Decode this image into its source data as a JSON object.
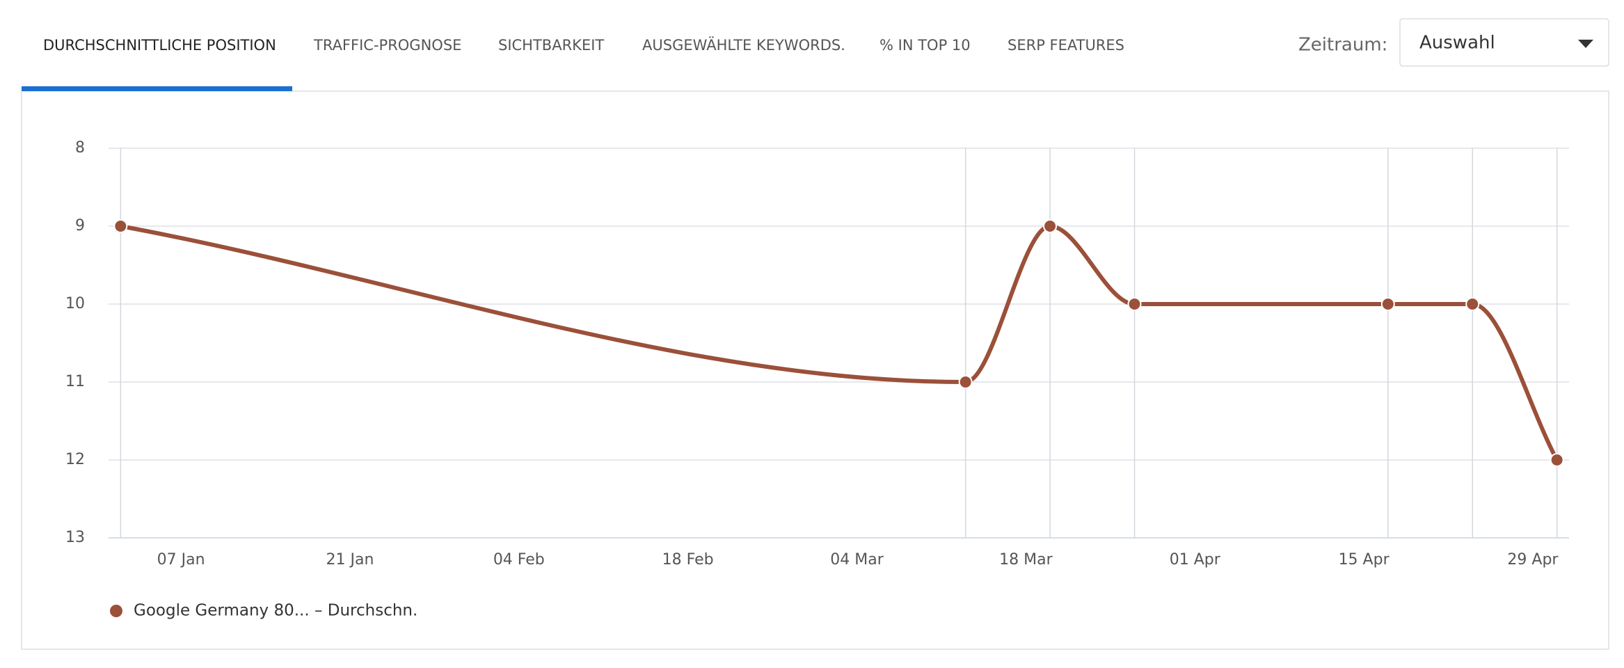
{
  "tabs": [
    "DURCHSCHNITTLICHE POSITION",
    "TRAFFIC-PROGNOSE",
    "SICHTBARKEIT",
    "AUSGEWÄHLTE KEYWORDS.",
    "% IN TOP 10",
    "SERP FEATURES"
  ],
  "period": {
    "label": "Zeitraum:",
    "value": "Auswahl"
  },
  "chart_data": {
    "type": "line",
    "x": [
      "02 Jan",
      "13 Mar",
      "20 Mar",
      "27 Mar",
      "17 Apr",
      "24 Apr",
      "01 May"
    ],
    "series": [
      {
        "name": "Google Germany 80... – Durchschn.",
        "color": "#9b5039",
        "values": [
          9,
          11,
          9,
          10,
          10,
          10,
          12
        ]
      }
    ],
    "xlim": [
      "01 Jan",
      "02 May"
    ],
    "xticks": [
      "07 Jan",
      "21 Jan",
      "04 Feb",
      "18 Feb",
      "04 Mar",
      "18 Mar",
      "01 Apr",
      "15 Apr",
      "29 Apr"
    ],
    "ylim": [
      8,
      13
    ],
    "yticks": [
      8,
      9,
      10,
      11,
      12,
      13
    ],
    "reversed": true,
    "grid": true,
    "point_lines": true,
    "smooth": true,
    "legend": "bottom-left"
  }
}
